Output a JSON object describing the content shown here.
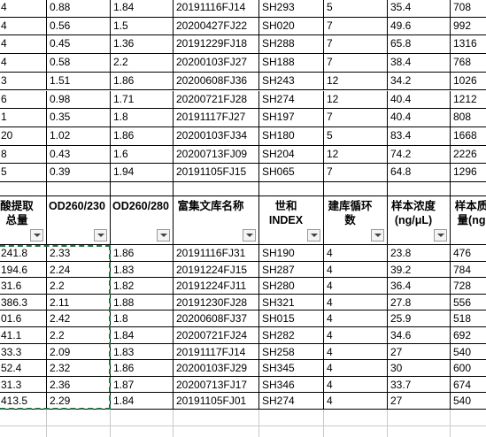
{
  "sheet": {
    "top_rows": [
      [
        "4",
        "0.88",
        "1.84",
        "20191116FJ14",
        "SH293",
        "5",
        "35.4",
        "708"
      ],
      [
        "4",
        "0.56",
        "1.5",
        "20200427FJ22",
        "SH020",
        "7",
        "49.6",
        "992"
      ],
      [
        "4",
        "0.45",
        "1.36",
        "20191229FJ18",
        "SH288",
        "7",
        "65.8",
        "1316"
      ],
      [
        "4",
        "0.58",
        "2.2",
        "20200103FJ27",
        "SH188",
        "7",
        "38.4",
        "768"
      ],
      [
        "3",
        "1.51",
        "1.86",
        "20200608FJ36",
        "SH243",
        "12",
        "34.2",
        "1026"
      ],
      [
        "6",
        "0.98",
        "1.71",
        "20200721FJ28",
        "SH274",
        "12",
        "40.4",
        "1212"
      ],
      [
        "1",
        "0.35",
        "1.8",
        "20191117FJ27",
        "SH197",
        "7",
        "40.4",
        "808"
      ],
      [
        "20",
        "1.02",
        "1.86",
        "20200103FJ34",
        "SH180",
        "5",
        "83.4",
        "1668"
      ],
      [
        "8",
        "0.43",
        "1.6",
        "20200713FJ09",
        "SH204",
        "12",
        "74.2",
        "2226"
      ],
      [
        "5",
        "0.39",
        "1.94",
        "20191105FJ15",
        "SH065",
        "7",
        "64.8",
        "1296"
      ]
    ],
    "header": [
      "酸提取总量",
      "OD260/230",
      "OD260/280",
      "富集文库名称",
      "世和INDEX",
      "建库循环数",
      "样本浓度(ng/μL)",
      "样本质量(ng"
    ],
    "bottom_rows": [
      [
        "241.8",
        "2.33",
        "1.86",
        "20191116FJ31",
        "SH190",
        "4",
        "23.8",
        "476"
      ],
      [
        "194.6",
        "2.24",
        "1.83",
        "20191224FJ15",
        "SH287",
        "4",
        "39.2",
        "784"
      ],
      [
        "31.6",
        "2.2",
        "1.82",
        "20191224FJ11",
        "SH280",
        "4",
        "36.4",
        "728"
      ],
      [
        "386.3",
        "2.11",
        "1.88",
        "20191230FJ28",
        "SH321",
        "4",
        "27.8",
        "556"
      ],
      [
        "01.6",
        "2.42",
        "1.8",
        "20200608FJ37",
        "SH015",
        "4",
        "25.9",
        "518"
      ],
      [
        "41.1",
        "2.2",
        "1.84",
        "20200721FJ24",
        "SH282",
        "4",
        "34.6",
        "692"
      ],
      [
        "33.3",
        "2.09",
        "1.83",
        "20191117FJ14",
        "SH258",
        "4",
        "27",
        "540"
      ],
      [
        "52.4",
        "2.32",
        "1.86",
        "20200103FJ29",
        "SH345",
        "4",
        "30",
        "600"
      ],
      [
        "31.3",
        "2.36",
        "1.87",
        "20200713FJ17",
        "SH346",
        "4",
        "33.7",
        "674"
      ],
      [
        "413.5",
        "2.29",
        "1.84",
        "20191105FJ01",
        "SH274",
        "4",
        "27",
        "540"
      ]
    ]
  }
}
